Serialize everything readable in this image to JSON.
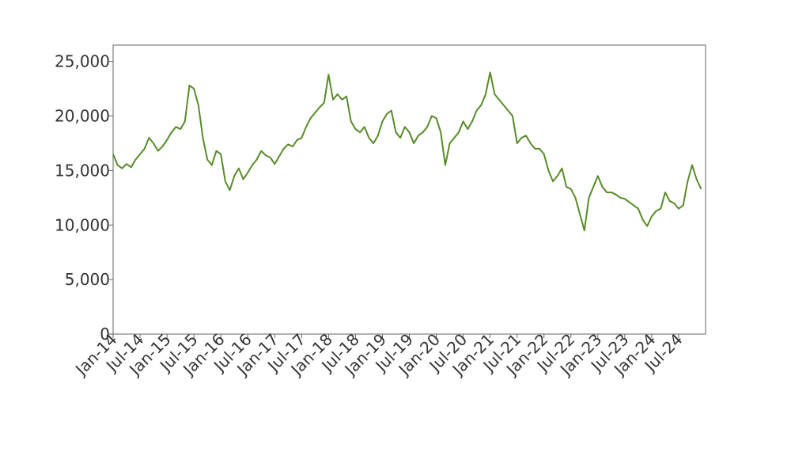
{
  "chart_data": {
    "type": "line",
    "x": [
      "2014-01",
      "2014-02",
      "2014-03",
      "2014-04",
      "2014-05",
      "2014-06",
      "2014-07",
      "2014-08",
      "2014-09",
      "2014-10",
      "2014-11",
      "2014-12",
      "2015-01",
      "2015-02",
      "2015-03",
      "2015-04",
      "2015-05",
      "2015-06",
      "2015-07",
      "2015-08",
      "2015-09",
      "2015-10",
      "2015-11",
      "2015-12",
      "2016-01",
      "2016-02",
      "2016-03",
      "2016-04",
      "2016-05",
      "2016-06",
      "2016-07",
      "2016-08",
      "2016-09",
      "2016-10",
      "2016-11",
      "2016-12",
      "2017-01",
      "2017-02",
      "2017-03",
      "2017-04",
      "2017-05",
      "2017-06",
      "2017-07",
      "2017-08",
      "2017-09",
      "2017-10",
      "2017-11",
      "2017-12",
      "2018-01",
      "2018-02",
      "2018-03",
      "2018-04",
      "2018-05",
      "2018-06",
      "2018-07",
      "2018-08",
      "2018-09",
      "2018-10",
      "2018-11",
      "2018-12",
      "2019-01",
      "2019-02",
      "2019-03",
      "2019-04",
      "2019-05",
      "2019-06",
      "2019-07",
      "2019-08",
      "2019-09",
      "2019-10",
      "2019-11",
      "2019-12",
      "2020-01",
      "2020-02",
      "2020-03",
      "2020-04",
      "2020-05",
      "2020-06",
      "2020-07",
      "2020-08",
      "2020-09",
      "2020-10",
      "2020-11",
      "2020-12",
      "2021-01",
      "2021-02",
      "2021-03",
      "2021-04",
      "2021-05",
      "2021-06",
      "2021-07",
      "2021-08",
      "2021-09",
      "2021-10",
      "2021-11",
      "2021-12",
      "2022-01",
      "2022-02",
      "2022-03",
      "2022-04",
      "2022-05",
      "2022-06",
      "2022-07",
      "2022-08",
      "2022-09",
      "2022-10",
      "2022-11",
      "2022-12",
      "2023-01",
      "2023-02",
      "2023-03",
      "2023-04",
      "2023-05",
      "2023-06",
      "2023-07",
      "2023-08",
      "2023-09",
      "2023-10",
      "2023-11",
      "2023-12",
      "2024-01",
      "2024-02",
      "2024-03",
      "2024-04",
      "2024-05",
      "2024-06",
      "2024-07",
      "2024-08",
      "2024-09",
      "2024-10",
      "2024-11",
      "2024-12"
    ],
    "series": [
      {
        "color": "#588b2a",
        "values": [
          16500,
          15500,
          15200,
          15600,
          15300,
          16000,
          16500,
          17000,
          18000,
          17500,
          16800,
          17200,
          17800,
          18500,
          19000,
          18800,
          19500,
          22800,
          22500,
          21000,
          18000,
          16000,
          15500,
          16800,
          16500,
          14000,
          13200,
          14500,
          15200,
          14200,
          14800,
          15500,
          16000,
          16800,
          16400,
          16200,
          15600,
          16300,
          17000,
          17400,
          17200,
          17800,
          18000,
          19000,
          19800,
          20300,
          20800,
          21200,
          23800,
          21500,
          22000,
          21500,
          21800,
          19500,
          18800,
          18500,
          19000,
          18000,
          17500,
          18200,
          19500,
          20200,
          20500,
          18500,
          18000,
          19000,
          18500,
          17500,
          18200,
          18500,
          19000,
          20000,
          19800,
          18500,
          15500,
          17500,
          18000,
          18500,
          19500,
          18800,
          19500,
          20500,
          21000,
          22000,
          24000,
          22000,
          21500,
          21000,
          20500,
          20000,
          17500,
          18000,
          18200,
          17500,
          17000,
          17000,
          16500,
          15000,
          14000,
          14500,
          15200,
          13500,
          13300,
          12500,
          11000,
          9500,
          12500,
          13500,
          14500,
          13500,
          13000,
          13000,
          12800,
          12500,
          12400,
          12100,
          11800,
          11500,
          10500,
          9900,
          10800,
          11300,
          11500,
          13000,
          12200,
          12000,
          11500,
          11800,
          14000,
          15500,
          14200,
          13300
        ]
      }
    ],
    "xlim": [
      "2014-01",
      "2025-01"
    ],
    "xticks": [
      {
        "value": "2014-01",
        "label": "Jan-14"
      },
      {
        "value": "2014-07",
        "label": "Jul-14"
      },
      {
        "value": "2015-01",
        "label": "Jan-15"
      },
      {
        "value": "2015-07",
        "label": "Jul-15"
      },
      {
        "value": "2016-01",
        "label": "Jan-16"
      },
      {
        "value": "2016-07",
        "label": "Jul-16"
      },
      {
        "value": "2017-01",
        "label": "Jan-17"
      },
      {
        "value": "2017-07",
        "label": "Jul-17"
      },
      {
        "value": "2018-01",
        "label": "Jan-18"
      },
      {
        "value": "2018-07",
        "label": "Jul-18"
      },
      {
        "value": "2019-01",
        "label": "Jan-19"
      },
      {
        "value": "2019-07",
        "label": "Jul-19"
      },
      {
        "value": "2020-01",
        "label": "Jan-20"
      },
      {
        "value": "2020-07",
        "label": "Jul-20"
      },
      {
        "value": "2021-01",
        "label": "Jan-21"
      },
      {
        "value": "2021-07",
        "label": "Jul-21"
      },
      {
        "value": "2022-01",
        "label": "Jan-22"
      },
      {
        "value": "2022-07",
        "label": "Jul-22"
      },
      {
        "value": "2023-01",
        "label": "Jan-23"
      },
      {
        "value": "2023-07",
        "label": "Jul-23"
      },
      {
        "value": "2024-01",
        "label": "Jan-24"
      },
      {
        "value": "2024-07",
        "label": "Jul-24"
      }
    ],
    "ylim": [
      0,
      26500
    ],
    "yticks": [
      0,
      {
        "value": 5000,
        "label": "5,000"
      },
      {
        "value": 10000,
        "label": "10,000"
      },
      {
        "value": 15000,
        "label": "15,000"
      },
      {
        "value": 20000,
        "label": "20,000"
      },
      {
        "value": 25000,
        "label": "25,000"
      }
    ],
    "grid": false
  }
}
